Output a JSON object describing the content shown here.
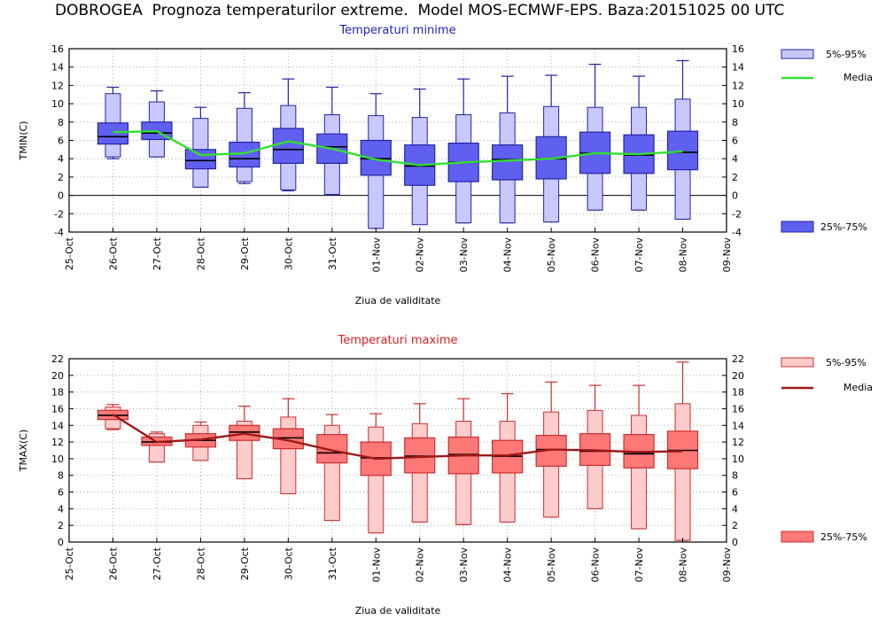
{
  "header": {
    "title": "DOBROGEA  Prognoza temperaturilor extreme.  Model MOS-ECMWF-EPS. Baza:20151025 00 UTC"
  },
  "chart_data": [
    {
      "type": "box",
      "title": "Temperaturi minime",
      "title_color": "#2222bb",
      "xlabel": "Ziua de validitate",
      "ylabel": "TMIN(C)",
      "ylim": [
        -4,
        16
      ],
      "yticks": [
        -4,
        -2,
        0,
        2,
        4,
        6,
        8,
        10,
        12,
        14,
        16
      ],
      "xticks": [
        "25-Oct",
        "26-Oct",
        "27-Oct",
        "28-Oct",
        "29-Oct",
        "30-Oct",
        "31-Oct",
        "01-Nov",
        "02-Nov",
        "03-Nov",
        "04-Nov",
        "05-Nov",
        "06-Nov",
        "07-Nov",
        "08-Nov",
        "09-Nov"
      ],
      "categories": [
        "26-Oct",
        "27-Oct",
        "28-Oct",
        "29-Oct",
        "30-Oct",
        "31-Oct",
        "01-Nov",
        "02-Nov",
        "03-Nov",
        "04-Nov",
        "05-Nov",
        "06-Nov",
        "07-Nov",
        "08-Nov"
      ],
      "p5_95": [
        [
          4.2,
          11.1
        ],
        [
          4.2,
          10.2
        ],
        [
          0.9,
          8.4
        ],
        [
          1.5,
          9.5
        ],
        [
          0.6,
          9.8
        ],
        [
          0.1,
          8.8
        ],
        [
          -3.6,
          8.7
        ],
        [
          -3.2,
          8.5
        ],
        [
          -3.0,
          8.8
        ],
        [
          -3.0,
          9.0
        ],
        [
          -2.9,
          9.7
        ],
        [
          -1.6,
          9.6
        ],
        [
          -1.6,
          9.6
        ],
        [
          -2.6,
          10.5
        ]
      ],
      "whiskers": [
        [
          4.0,
          11.8
        ],
        [
          4.2,
          11.4
        ],
        [
          0.9,
          9.6
        ],
        [
          1.3,
          11.2
        ],
        [
          0.5,
          12.7
        ],
        [
          0.1,
          11.8
        ],
        [
          -3.6,
          11.1
        ],
        [
          -3.1,
          11.6
        ],
        [
          -3.0,
          12.7
        ],
        [
          -3.0,
          13.0
        ],
        [
          -2.9,
          13.1
        ],
        [
          -1.6,
          14.3
        ],
        [
          -1.6,
          13.0
        ],
        [
          -2.6,
          14.7
        ]
      ],
      "p25_75": [
        [
          5.6,
          7.9
        ],
        [
          6.1,
          8.0
        ],
        [
          2.9,
          5.0
        ],
        [
          3.1,
          5.8
        ],
        [
          3.5,
          7.3
        ],
        [
          3.5,
          6.7
        ],
        [
          2.2,
          6.0
        ],
        [
          1.1,
          5.5
        ],
        [
          1.5,
          5.7
        ],
        [
          1.7,
          5.5
        ],
        [
          1.8,
          6.4
        ],
        [
          2.4,
          6.9
        ],
        [
          2.4,
          6.6
        ],
        [
          2.8,
          7.0
        ]
      ],
      "medians": [
        6.4,
        6.8,
        3.8,
        4.0,
        5.0,
        5.3,
        4.0,
        3.2,
        3.6,
        3.9,
        4.0,
        4.6,
        4.4,
        4.7
      ],
      "series": [
        {
          "name": "Media",
          "values": [
            6.9,
            7.0,
            4.4,
            4.6,
            5.9,
            5.1,
            3.9,
            3.3,
            3.6,
            3.8,
            4.0,
            4.6,
            4.5,
            4.8
          ]
        }
      ],
      "legend": {
        "band_label": "5%-95%",
        "mean_label": "Media",
        "iqr_label": "25%-75%",
        "placement": "right"
      },
      "colors": {
        "band_fill": "#c8c8ff",
        "iqr_fill": "#6060f0",
        "box_stroke": "#2424a0",
        "mean_line": "#33dd33",
        "title": "#2222bb"
      },
      "grid": "dotted"
    },
    {
      "type": "box",
      "title": "Temperaturi maxime",
      "title_color": "#e02020",
      "xlabel": "Ziua de validitate",
      "ylabel": "TMAX(C)",
      "ylim": [
        0,
        22
      ],
      "yticks": [
        0,
        2,
        4,
        6,
        8,
        10,
        12,
        14,
        16,
        18,
        20,
        22
      ],
      "xticks": [
        "25-Oct",
        "26-Oct",
        "27-Oct",
        "28-Oct",
        "29-Oct",
        "30-Oct",
        "31-Oct",
        "01-Nov",
        "02-Nov",
        "03-Nov",
        "04-Nov",
        "05-Nov",
        "06-Nov",
        "07-Nov",
        "08-Nov",
        "09-Nov"
      ],
      "categories": [
        "26-Oct",
        "27-Oct",
        "28-Oct",
        "29-Oct",
        "30-Oct",
        "31-Oct",
        "01-Nov",
        "02-Nov",
        "03-Nov",
        "04-Nov",
        "05-Nov",
        "06-Nov",
        "07-Nov",
        "08-Nov"
      ],
      "p5_95": [
        [
          13.6,
          16.2
        ],
        [
          9.6,
          13.0
        ],
        [
          9.8,
          14.0
        ],
        [
          7.6,
          14.5
        ],
        [
          5.8,
          15.0
        ],
        [
          2.6,
          14.0
        ],
        [
          1.1,
          13.8
        ],
        [
          2.4,
          14.2
        ],
        [
          2.1,
          14.5
        ],
        [
          2.4,
          14.5
        ],
        [
          3.0,
          15.6
        ],
        [
          4.0,
          15.8
        ],
        [
          1.6,
          15.2
        ],
        [
          0.2,
          16.6
        ]
      ],
      "whiskers": [
        [
          13.5,
          16.5
        ],
        [
          9.6,
          13.2
        ],
        [
          9.8,
          14.4
        ],
        [
          7.6,
          16.3
        ],
        [
          5.8,
          17.2
        ],
        [
          2.6,
          15.3
        ],
        [
          1.1,
          15.4
        ],
        [
          2.4,
          16.6
        ],
        [
          2.1,
          17.2
        ],
        [
          2.4,
          17.8
        ],
        [
          3.0,
          19.2
        ],
        [
          4.0,
          18.8
        ],
        [
          1.6,
          18.8
        ],
        [
          0.2,
          21.6
        ]
      ],
      "p25_75": [
        [
          14.7,
          15.8
        ],
        [
          11.6,
          12.6
        ],
        [
          11.4,
          13.0
        ],
        [
          12.2,
          14.0
        ],
        [
          11.2,
          13.6
        ],
        [
          9.5,
          12.9
        ],
        [
          8.0,
          12.0
        ],
        [
          8.3,
          12.5
        ],
        [
          8.2,
          12.6
        ],
        [
          8.3,
          12.2
        ],
        [
          9.1,
          12.8
        ],
        [
          9.2,
          13.0
        ],
        [
          8.9,
          12.9
        ],
        [
          8.8,
          13.3
        ]
      ],
      "medians": [
        15.2,
        12.0,
        12.2,
        13.2,
        12.5,
        10.7,
        10.1,
        10.3,
        10.5,
        10.3,
        11.1,
        10.9,
        10.6,
        11.0
      ],
      "series": [
        {
          "name": "Media",
          "values": [
            15.3,
            12.0,
            12.3,
            13.0,
            12.2,
            11.0,
            10.0,
            10.2,
            10.4,
            10.4,
            11.1,
            11.0,
            10.8,
            10.9
          ]
        }
      ],
      "legend": {
        "band_label": "5%-95%",
        "mean_label": "Media",
        "iqr_label": "25%-75%",
        "placement": "right"
      },
      "colors": {
        "band_fill": "#ffcccc",
        "iqr_fill": "#ff7878",
        "box_stroke": "#c83030",
        "mean_line": "#a01818",
        "title": "#e02020"
      },
      "grid": "dotted"
    }
  ]
}
